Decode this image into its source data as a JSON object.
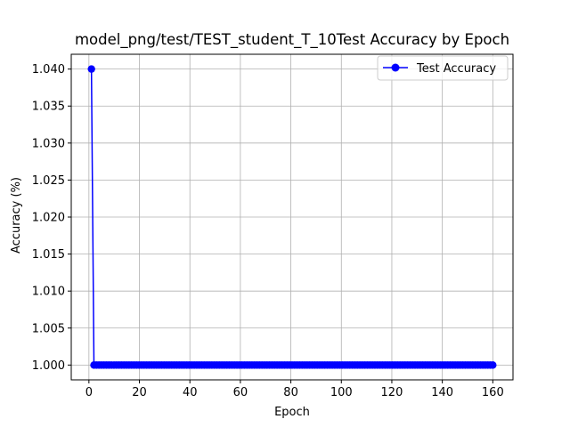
{
  "chart_data": {
    "type": "line",
    "title": "model_png/test/TEST_student_T_10Test Accuracy by Epoch",
    "xlabel": "Epoch",
    "ylabel": "Accuracy (%)",
    "xlim": [
      -7,
      168
    ],
    "ylim": [
      0.998,
      1.042
    ],
    "xticks": [
      0,
      20,
      40,
      60,
      80,
      100,
      120,
      140,
      160
    ],
    "yticks": [
      1.0,
      1.005,
      1.01,
      1.015,
      1.02,
      1.025,
      1.03,
      1.035,
      1.04
    ],
    "ytick_labels": [
      "1.000",
      "1.005",
      "1.010",
      "1.015",
      "1.020",
      "1.025",
      "1.030",
      "1.035",
      "1.040"
    ],
    "grid": true,
    "legend_position": "top-right",
    "series": [
      {
        "name": "Test Accuracy",
        "color": "#0000ff",
        "marker": "circle",
        "x_start": 1,
        "x_end": 160,
        "values": [
          1.04,
          1.0,
          1.0,
          1.0,
          1.0,
          1.0,
          1.0,
          1.0,
          1.0,
          1.0,
          1.0,
          1.0,
          1.0,
          1.0,
          1.0,
          1.0,
          1.0,
          1.0,
          1.0,
          1.0,
          1.0,
          1.0,
          1.0,
          1.0,
          1.0,
          1.0,
          1.0,
          1.0,
          1.0,
          1.0,
          1.0,
          1.0,
          1.0,
          1.0,
          1.0,
          1.0,
          1.0,
          1.0,
          1.0,
          1.0,
          1.0,
          1.0,
          1.0,
          1.0,
          1.0,
          1.0,
          1.0,
          1.0,
          1.0,
          1.0,
          1.0,
          1.0,
          1.0,
          1.0,
          1.0,
          1.0,
          1.0,
          1.0,
          1.0,
          1.0,
          1.0,
          1.0,
          1.0,
          1.0,
          1.0,
          1.0,
          1.0,
          1.0,
          1.0,
          1.0,
          1.0,
          1.0,
          1.0,
          1.0,
          1.0,
          1.0,
          1.0,
          1.0,
          1.0,
          1.0,
          1.0,
          1.0,
          1.0,
          1.0,
          1.0,
          1.0,
          1.0,
          1.0,
          1.0,
          1.0,
          1.0,
          1.0,
          1.0,
          1.0,
          1.0,
          1.0,
          1.0,
          1.0,
          1.0,
          1.0,
          1.0,
          1.0,
          1.0,
          1.0,
          1.0,
          1.0,
          1.0,
          1.0,
          1.0,
          1.0,
          1.0,
          1.0,
          1.0,
          1.0,
          1.0,
          1.0,
          1.0,
          1.0,
          1.0,
          1.0,
          1.0,
          1.0,
          1.0,
          1.0,
          1.0,
          1.0,
          1.0,
          1.0,
          1.0,
          1.0,
          1.0,
          1.0,
          1.0,
          1.0,
          1.0,
          1.0,
          1.0,
          1.0,
          1.0,
          1.0,
          1.0,
          1.0,
          1.0,
          1.0,
          1.0,
          1.0,
          1.0,
          1.0,
          1.0,
          1.0,
          1.0,
          1.0,
          1.0,
          1.0,
          1.0,
          1.0,
          1.0,
          1.0,
          1.0,
          1.0,
          1.0
        ]
      }
    ]
  }
}
